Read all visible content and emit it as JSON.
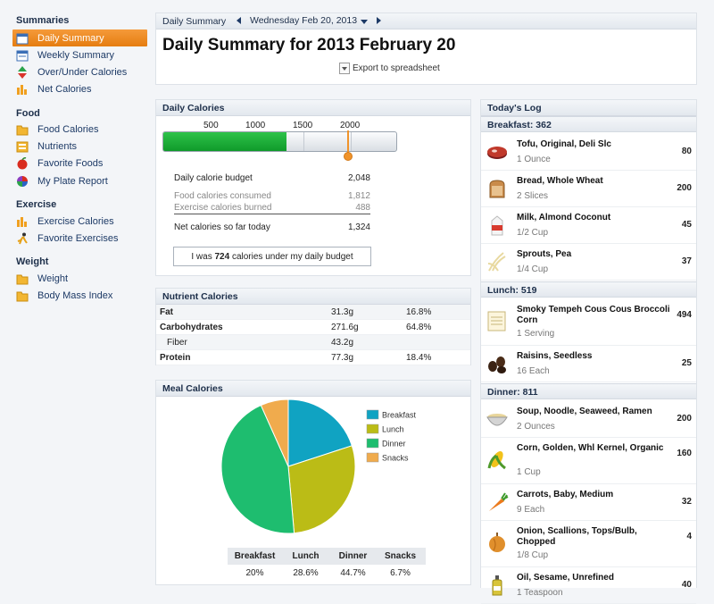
{
  "sidebar": {
    "summaries_title": "Summaries",
    "summaries": [
      {
        "label": "Daily Summary",
        "icon": "calendar-icon"
      },
      {
        "label": "Weekly Summary",
        "icon": "calendar-week-icon"
      },
      {
        "label": "Over/Under Calories",
        "icon": "updown-arrows-icon"
      },
      {
        "label": "Net Calories",
        "icon": "bar-chart-icon"
      }
    ],
    "food_title": "Food",
    "food": [
      {
        "label": "Food Calories",
        "icon": "folder-icon"
      },
      {
        "label": "Nutrients",
        "icon": "nutrients-icon"
      },
      {
        "label": "Favorite Foods",
        "icon": "apple-icon"
      },
      {
        "label": "My Plate Report",
        "icon": "plate-pie-icon"
      }
    ],
    "exercise_title": "Exercise",
    "exercise": [
      {
        "label": "Exercise Calories",
        "icon": "bar-chart-icon"
      },
      {
        "label": "Favorite Exercises",
        "icon": "runner-icon"
      }
    ],
    "weight_title": "Weight",
    "weight": [
      {
        "label": "Weight",
        "icon": "folder-icon"
      },
      {
        "label": "Body Mass Index",
        "icon": "folder-icon"
      }
    ]
  },
  "header": {
    "tab": "Daily Summary",
    "date": "Wednesday Feb 20, 2013",
    "title": "Daily Summary for 2013 February 20",
    "export": "Export to spreadsheet"
  },
  "daily_calories": {
    "title": "Daily Calories",
    "scale_labels": [
      "500",
      "1000",
      "1500",
      "2000"
    ],
    "bar_fill_fraction": 0.53,
    "budget_fraction": 0.79,
    "budget_label": "Daily calorie budget",
    "budget_value": "2,048",
    "consumed_label": "Food calories consumed",
    "consumed_value": "1,812",
    "burned_label": "Exercise calories burned",
    "burned_value": "488",
    "net_label": "Net calories so far today",
    "net_value": "1,324",
    "under_prefix": "I was ",
    "under_value": "724",
    "under_suffix": " calories under my daily budget"
  },
  "nutrients": {
    "title": "Nutrient Calories",
    "rows": [
      {
        "name": "Fat",
        "grams": "31.3g",
        "pct": "16.8%",
        "bold": true
      },
      {
        "name": "Carbohydrates",
        "grams": "271.6g",
        "pct": "64.8%",
        "bold": true
      },
      {
        "name": "Fiber",
        "grams": "43.2g",
        "pct": "",
        "bold": false
      },
      {
        "name": "Protein",
        "grams": "77.3g",
        "pct": "18.4%",
        "bold": true
      }
    ]
  },
  "meal_calories": {
    "title": "Meal Calories",
    "legend": [
      "Breakfast",
      "Lunch",
      "Dinner",
      "Snacks"
    ],
    "colors": [
      "#10a3c2",
      "#bbbc16",
      "#1ebd6f",
      "#f0ab4d"
    ],
    "headers": [
      "Breakfast",
      "Lunch",
      "Dinner",
      "Snacks"
    ],
    "values": [
      "20%",
      "28.6%",
      "44.7%",
      "6.7%"
    ]
  },
  "chart_data": {
    "type": "pie",
    "categories": [
      "Breakfast",
      "Lunch",
      "Dinner",
      "Snacks"
    ],
    "values": [
      20,
      28.6,
      44.7,
      6.7
    ],
    "title": "Meal Calories"
  },
  "log": {
    "title": "Today's Log",
    "sections": [
      {
        "label": "Breakfast: 362",
        "items": [
          {
            "name": "Tofu, Original, Deli Slc",
            "amount": "1 Ounce",
            "cal": "80",
            "icon": "meat-icon"
          },
          {
            "name": "Bread, Whole Wheat",
            "amount": "2 Slices",
            "cal": "200",
            "icon": "bread-icon"
          },
          {
            "name": "Milk, Almond Coconut",
            "amount": "1/2 Cup",
            "cal": "45",
            "icon": "milk-carton-icon"
          },
          {
            "name": "Sprouts, Pea",
            "amount": "1/4 Cup",
            "cal": "37",
            "icon": "sprouts-icon"
          }
        ]
      },
      {
        "label": "Lunch: 519",
        "items": [
          {
            "name": "Smoky Tempeh Cous Cous Broccoli Corn",
            "amount": "1 Serving",
            "cal": "494",
            "icon": "recipe-card-icon"
          },
          {
            "name": "Raisins, Seedless",
            "amount": "16 Each",
            "cal": "25",
            "icon": "raisins-icon"
          }
        ]
      },
      {
        "label": "Dinner: 811",
        "items": [
          {
            "name": "Soup, Noodle, Seaweed, Ramen",
            "amount": "2 Ounces",
            "cal": "200",
            "icon": "soup-bowl-icon"
          },
          {
            "name": "Corn, Golden, Whl Kernel, Organic",
            "amount": "1 Cup",
            "cal": "160",
            "icon": "corn-icon"
          },
          {
            "name": "Carrots, Baby, Medium",
            "amount": "9 Each",
            "cal": "32",
            "icon": "carrot-icon"
          },
          {
            "name": "Onion, Scallions, Tops/Bulb, Chopped",
            "amount": "1/8 Cup",
            "cal": "4",
            "icon": "onion-icon"
          },
          {
            "name": "Oil, Sesame, Unrefined",
            "amount": "1 Teaspoon",
            "cal": "40",
            "icon": "oil-bottle-icon"
          }
        ]
      }
    ]
  }
}
